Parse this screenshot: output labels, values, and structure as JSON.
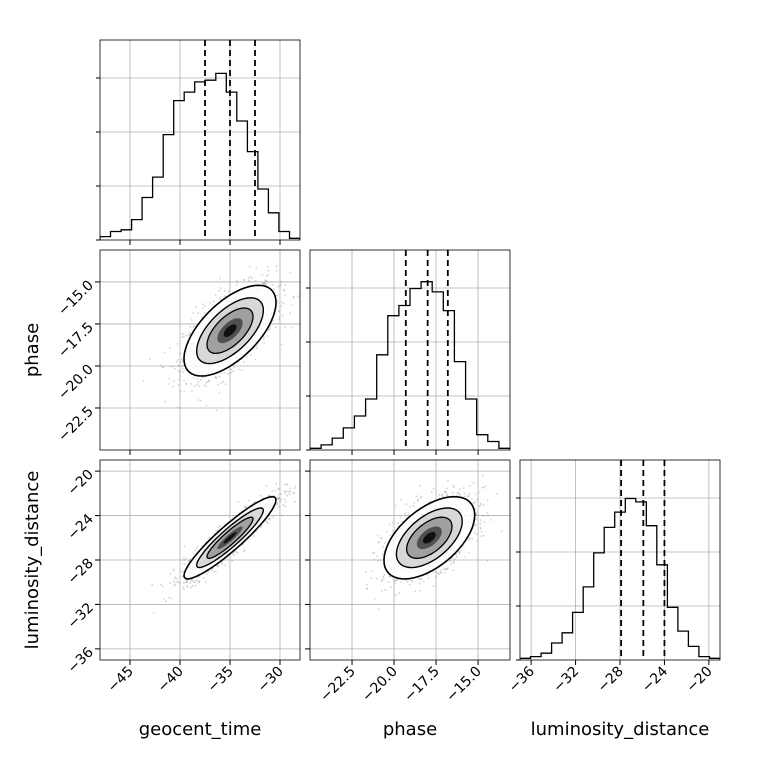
{
  "chart_data": {
    "type": "corner",
    "parameters": [
      "geocent_time",
      "phase",
      "luminosity_distance"
    ],
    "labels": [
      "geocent_time",
      "phase",
      "luminosity_distance"
    ],
    "ranges": [
      [
        -48,
        -28
      ],
      [
        -25,
        -13.1
      ],
      [
        -37,
        -19
      ]
    ],
    "ticks": [
      [
        -45,
        -40,
        -35,
        -30
      ],
      [
        -22.5,
        -20.0,
        -17.5,
        -15.0
      ],
      [
        -36,
        -32,
        -28,
        -24,
        -20
      ]
    ],
    "tick_labels": [
      [
        "−45",
        "−40",
        "−35",
        "−30"
      ],
      [
        "−22.5",
        "−20.0",
        "−17.5",
        "−15.0"
      ],
      [
        "−36",
        "−32",
        "−28",
        "−24",
        "−20"
      ]
    ],
    "quantiles": [
      [
        -37.5,
        -35.0,
        -32.5
      ],
      [
        -19.3,
        -18.0,
        -16.8
      ],
      [
        -27.9,
        -25.9,
        -24.0
      ]
    ],
    "means": [
      -35.0,
      -17.9,
      -26.0
    ],
    "sigmas": [
      2.3,
      1.35,
      1.85
    ],
    "histogram_counts": [
      [
        0.02,
        0.05,
        0.06,
        0.12,
        0.25,
        0.37,
        0.62,
        0.82,
        0.87,
        0.93,
        0.94,
        0.98,
        0.87,
        0.7,
        0.52,
        0.3,
        0.16,
        0.05,
        0.01
      ],
      [
        0.01,
        0.03,
        0.07,
        0.13,
        0.2,
        0.3,
        0.56,
        0.79,
        0.85,
        0.95,
        0.99,
        0.93,
        0.82,
        0.52,
        0.3,
        0.09,
        0.05,
        0.01
      ],
      [
        0.01,
        0.02,
        0.04,
        0.1,
        0.16,
        0.28,
        0.43,
        0.63,
        0.78,
        0.87,
        0.95,
        0.93,
        0.79,
        0.56,
        0.31,
        0.17,
        0.08,
        0.02,
        0.01
      ]
    ],
    "correlations": {
      "1,0": 0.62,
      "2,0": 0.92,
      "2,1": 0.55
    },
    "grid": true,
    "scatter_color": "#808080",
    "line_color": "#000000"
  }
}
